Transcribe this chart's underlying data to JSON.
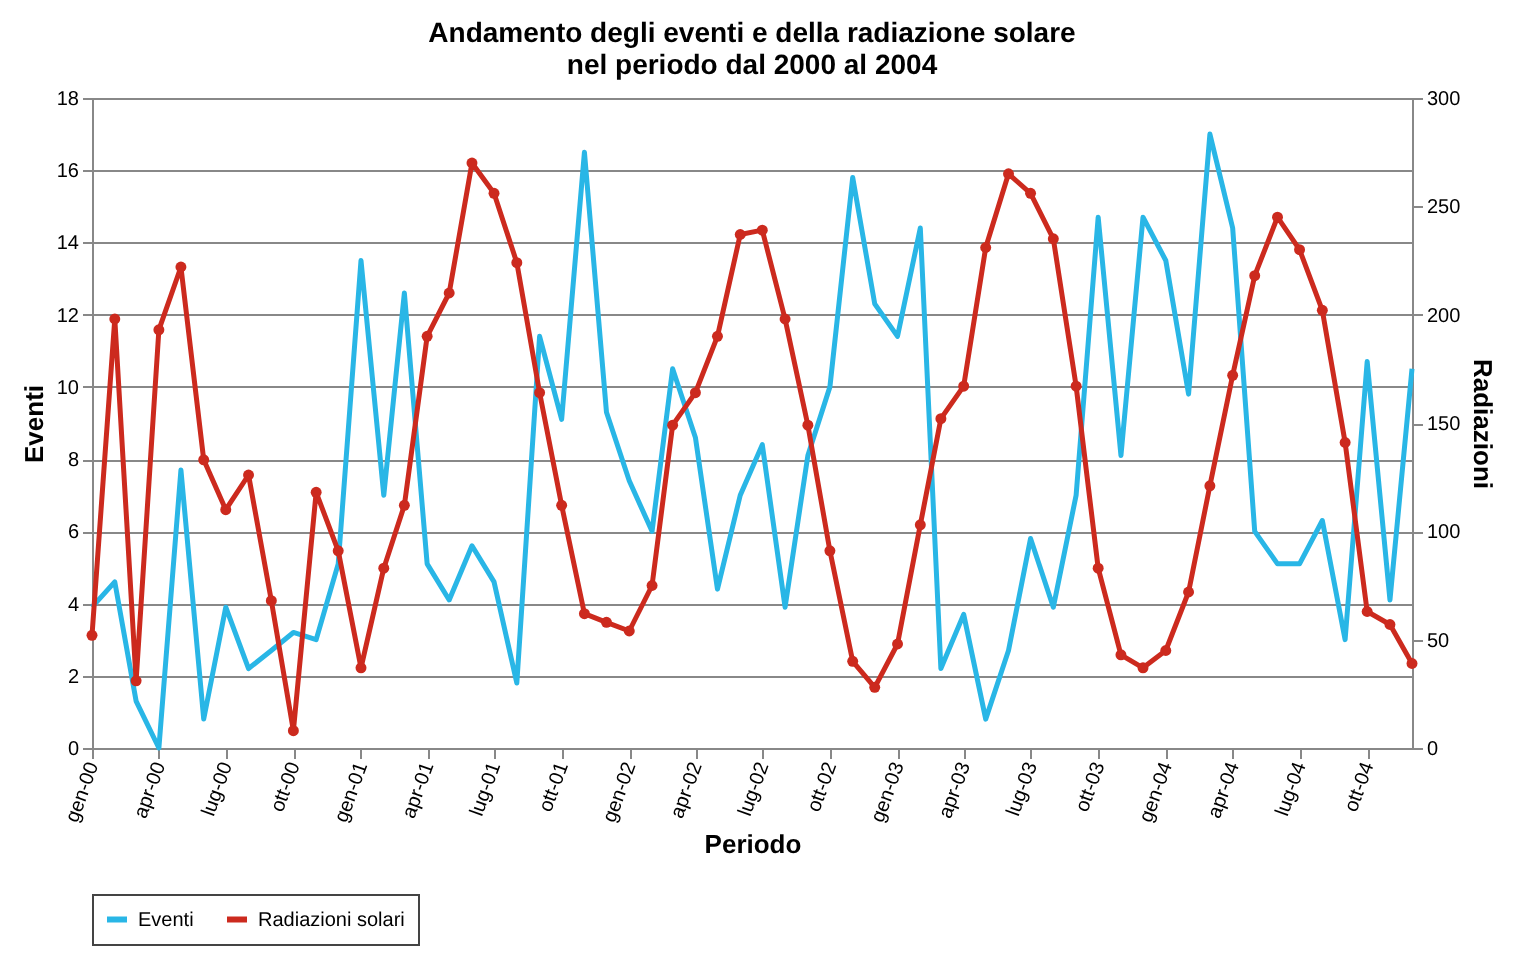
{
  "chart_data": {
    "type": "line",
    "title": [
      "Andamento degli eventi e della radiazione solare",
      "nel periodo dal 2000 al 2004"
    ],
    "xlabel": "Periodo",
    "ylabel": "Eventi",
    "y2label": "Radiazioni",
    "x": [
      "2000-01",
      "2000-02",
      "2000-03",
      "2000-04",
      "2000-05",
      "2000-06",
      "2000-07",
      "2000-08",
      "2000-09",
      "2000-10",
      "2000-11",
      "2000-12",
      "2001-01",
      "2001-02",
      "2001-03",
      "2001-04",
      "2001-05",
      "2001-06",
      "2001-07",
      "2001-08",
      "2001-09",
      "2001-10",
      "2001-11",
      "2001-12",
      "2002-01",
      "2002-02",
      "2002-03",
      "2002-04",
      "2002-05",
      "2002-06",
      "2002-07",
      "2002-08",
      "2002-09",
      "2002-10",
      "2002-11",
      "2002-12",
      "2003-01",
      "2003-02",
      "2003-03",
      "2003-04",
      "2003-05",
      "2003-06",
      "2003-07",
      "2003-08",
      "2003-09",
      "2003-10",
      "2003-11",
      "2003-12",
      "2004-01",
      "2004-02",
      "2004-03",
      "2004-04",
      "2004-05",
      "2004-06",
      "2004-07",
      "2004-08",
      "2004-09",
      "2004-10",
      "2004-11",
      "2004-12"
    ],
    "series": [
      {
        "name": "Eventi",
        "color": "#29b6e6",
        "marker": "none",
        "values": [
          3.9,
          4.6,
          1.3,
          0,
          7.7,
          0.8,
          3.9,
          2.2,
          2.7,
          3.2,
          3,
          5.1,
          13.5,
          7,
          12.6,
          5.1,
          4.1,
          5.6,
          4.6,
          1.8,
          11.4,
          9.1,
          16.5,
          9.3,
          7.4,
          6,
          10.5,
          8.6,
          4.4,
          7,
          8.4,
          3.9,
          8.1,
          10,
          15.8,
          12.3,
          11.4,
          14.4,
          2.2,
          3.7,
          0.8,
          2.7,
          5.8,
          3.9,
          7,
          14.7,
          8.1,
          14.7,
          13.5,
          9.8,
          17,
          14.4,
          6,
          5.1,
          5.1,
          6.3,
          3,
          10.7,
          4.1,
          10.5
        ]
      },
      {
        "name": "Radiazioni solari",
        "color": "#cc2a1e",
        "marker": "circle",
        "axis": "y2",
        "values": [
          52,
          198,
          31,
          193,
          222,
          133,
          110,
          126,
          68,
          8,
          118,
          91,
          37,
          83,
          112,
          190,
          210,
          270,
          256,
          224,
          164,
          112,
          62,
          58,
          54,
          75,
          149,
          164,
          190,
          237,
          239,
          198,
          149,
          91,
          40,
          28,
          48,
          103,
          152,
          167,
          231,
          265,
          256,
          235,
          167,
          83,
          43,
          37,
          45,
          72,
          121,
          172,
          218,
          245,
          230,
          202,
          141,
          63,
          57,
          39
        ]
      }
    ],
    "xlim": [
      "2000-01",
      "2004-12"
    ],
    "xticks": [
      {
        "value": "2000-01",
        "label": "gen-00"
      },
      {
        "value": "2000-04",
        "label": "apr-00"
      },
      {
        "value": "2000-07",
        "label": "lug-00"
      },
      {
        "value": "2000-10",
        "label": "ott-00"
      },
      {
        "value": "2001-01",
        "label": "gen-01"
      },
      {
        "value": "2001-04",
        "label": "apr-01"
      },
      {
        "value": "2001-07",
        "label": "lug-01"
      },
      {
        "value": "2001-10",
        "label": "ott-01"
      },
      {
        "value": "2002-01",
        "label": "gen-02"
      },
      {
        "value": "2002-04",
        "label": "apr-02"
      },
      {
        "value": "2002-07",
        "label": "lug-02"
      },
      {
        "value": "2002-10",
        "label": "ott-02"
      },
      {
        "value": "2003-01",
        "label": "gen-03"
      },
      {
        "value": "2003-04",
        "label": "apr-03"
      },
      {
        "value": "2003-07",
        "label": "lug-03"
      },
      {
        "value": "2003-10",
        "label": "ott-03"
      },
      {
        "value": "2004-01",
        "label": "gen-04"
      },
      {
        "value": "2004-04",
        "label": "apr-04"
      },
      {
        "value": "2004-07",
        "label": "lug-04"
      },
      {
        "value": "2004-10",
        "label": "ott-04"
      }
    ],
    "ylim": [
      0,
      18
    ],
    "yticks": [
      0,
      2,
      4,
      6,
      8,
      10,
      12,
      14,
      16,
      18
    ],
    "y2lim": [
      0,
      300
    ],
    "y2ticks": [
      0,
      50,
      100,
      150,
      200,
      250,
      300
    ],
    "grid": "y",
    "legend": "bottom"
  }
}
